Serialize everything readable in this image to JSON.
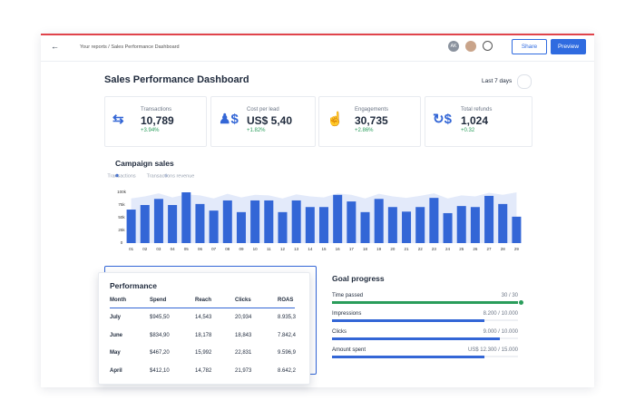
{
  "header": {
    "breadcrumb": "Your reports / Sales Performance Dashboard",
    "avatar": "AK",
    "share": "Share",
    "preview": "Preview"
  },
  "dashboard": {
    "title": "Sales Performance Dashboard",
    "date_range": "Last 7 days"
  },
  "kpis": [
    {
      "label": "Transactions",
      "value": "10,789",
      "change": "+3.94%"
    },
    {
      "label": "Cost per lead",
      "value": "US$ 5,40",
      "change": "+1.82%"
    },
    {
      "label": "Engagements",
      "value": "30,735",
      "change": "+2.86%"
    },
    {
      "label": "Total refunds",
      "value": "1,024",
      "change": "+0.32"
    }
  ],
  "campaign_chart": {
    "type": "bar",
    "title": "Campaign sales",
    "categories": [
      "01",
      "02",
      "03",
      "04",
      "05",
      "06",
      "07",
      "08",
      "09",
      "10",
      "11",
      "12",
      "13",
      "14",
      "15",
      "16",
      "17",
      "18",
      "19",
      "20",
      "21",
      "22",
      "23",
      "24",
      "25",
      "26",
      "27",
      "28",
      "29"
    ],
    "series": [
      {
        "name": "Transactions",
        "color": "#3366d6",
        "values": [
          66,
          75,
          87,
          75,
          100,
          77,
          64,
          84,
          61,
          84,
          84,
          61,
          84,
          71,
          71,
          95,
          82,
          61,
          87,
          71,
          62,
          71,
          89,
          59,
          73,
          71,
          93,
          77,
          52
        ]
      },
      {
        "name": "Transactions revenue",
        "color": "#e3eafa",
        "values": [
          88,
          92,
          98,
          90,
          96,
          94,
          88,
          97,
          90,
          95,
          94,
          88,
          96,
          92,
          90,
          98,
          95,
          88,
          97,
          92,
          89,
          93,
          98,
          88,
          94,
          92,
          99,
          95,
          100
        ]
      }
    ],
    "ylim": [
      0,
      100
    ],
    "yticks": [
      0,
      {
        "value": 25,
        "label": "25k"
      },
      {
        "value": 50,
        "label": "50k"
      },
      {
        "value": 75,
        "label": "75k"
      },
      {
        "value": 100,
        "label": "100k"
      }
    ]
  },
  "performance": {
    "title": "Performance",
    "columns": [
      "Month",
      "Spend",
      "Reach",
      "Clicks",
      "ROAS"
    ],
    "rows": [
      [
        "July",
        "$945,50",
        "14,543",
        "20,934",
        "8.935,3"
      ],
      [
        "June",
        "$834,90",
        "18,178",
        "18,843",
        "7.842,4"
      ],
      [
        "May",
        "$467,20",
        "15,992",
        "22,831",
        "9.596,9"
      ],
      [
        "April",
        "$412,10",
        "14,782",
        "21,973",
        "8.642,2"
      ]
    ]
  },
  "goals": {
    "title": "Goal progress",
    "items": [
      {
        "name": "Time passed",
        "value": 30,
        "max": 30,
        "value_label": "30 / 30",
        "color": "#2a9d5b"
      },
      {
        "name": "Impressions",
        "value": 8200,
        "max": 10000,
        "value_label": "8.200 / 10.000",
        "color": "#3366d6"
      },
      {
        "name": "Clicks",
        "value": 9000,
        "max": 10000,
        "value_label": "9.000 / 10.000",
        "color": "#3366d6"
      },
      {
        "name": "Amount spent",
        "value": 12300,
        "max": 15000,
        "value_label": "US$ 12.300 / 15.000",
        "color": "#3366d6"
      }
    ]
  }
}
